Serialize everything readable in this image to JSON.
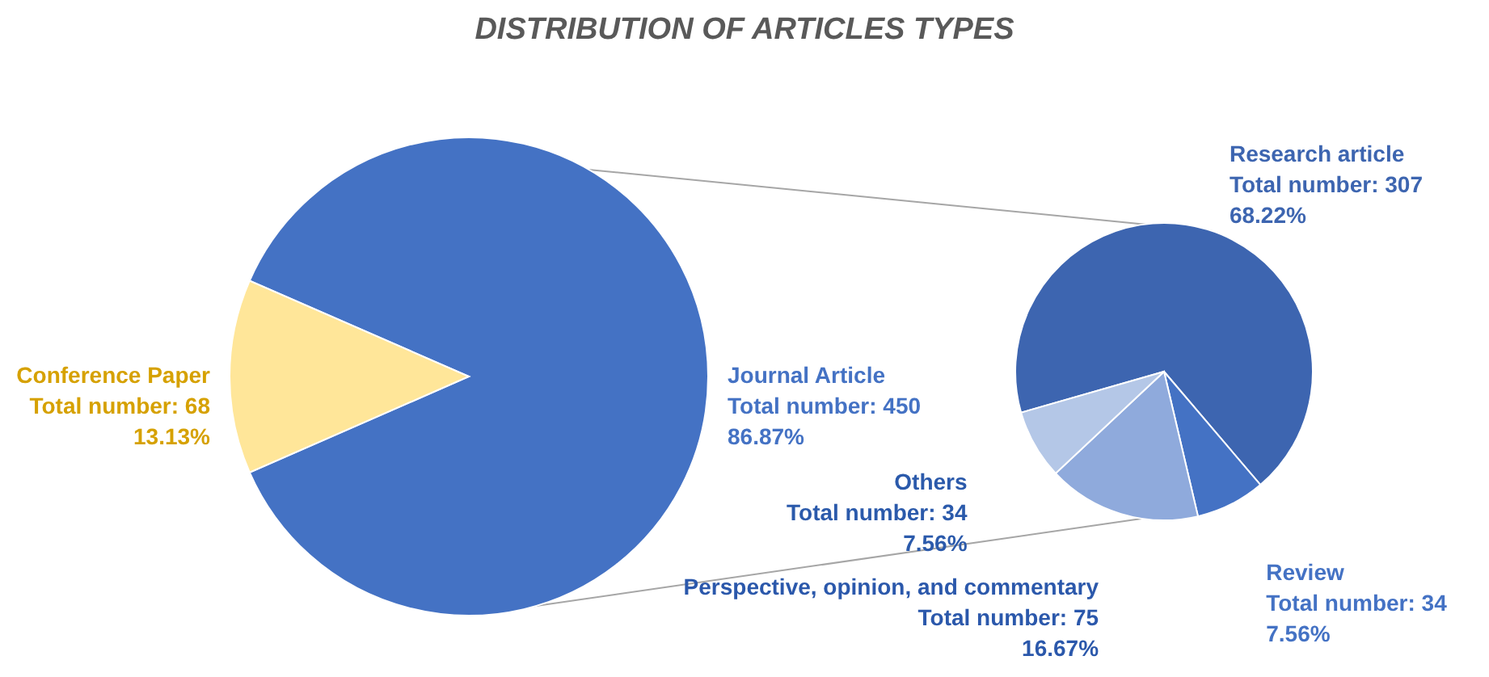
{
  "chart_data": [
    {
      "type": "pie",
      "title": "DISTRIBUTION OF ARTICLES TYPES",
      "categories": [
        "Journal Article",
        "Conference Paper"
      ],
      "values": [
        450,
        68
      ],
      "colors": [
        "#4472c4",
        "#ffe699"
      ],
      "value_labels": [
        "Total number: 450\n86.87%",
        "Total number: 68\n13.13%"
      ]
    },
    {
      "type": "pie",
      "categories": [
        "Research article",
        "Review",
        "Perspective, opinion, and commentary",
        "Others"
      ],
      "values": [
        307,
        34,
        75,
        34
      ],
      "colors": [
        "#3d65b0",
        "#4472c4",
        "#8faadc",
        "#b4c7e7"
      ],
      "value_labels": [
        "Total number: 307\n68.22%",
        "Total number: 34\n7.56%",
        "Total number: 75\n16.67%",
        "Total number: 34\n7.56%"
      ]
    }
  ]
}
